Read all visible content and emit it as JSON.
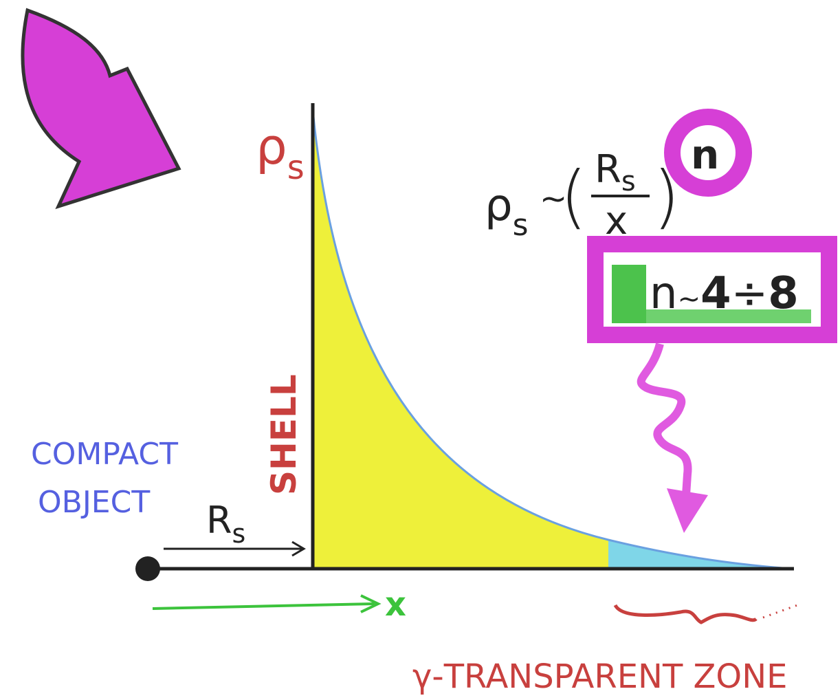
{
  "axes": {
    "y_label": {
      "base": "ρ",
      "sub": "s"
    },
    "x_label": "x",
    "radius_label": {
      "base": "R",
      "sub": "s"
    }
  },
  "labels": {
    "shell": "SHELL",
    "compact_object": [
      "COMPACT",
      "OBJECT"
    ],
    "transparent_zone": "γ-TRANSPARENT ZONE"
  },
  "formula": {
    "lhs": {
      "base": "ρ",
      "sub": "s"
    },
    "relation": "~",
    "numerator": {
      "base": "R",
      "sub": "s"
    },
    "denominator": "x",
    "exponent": "n"
  },
  "range": {
    "variable": "n",
    "relation": "~",
    "from": 4,
    "operator": "÷",
    "to": 8
  }
}
